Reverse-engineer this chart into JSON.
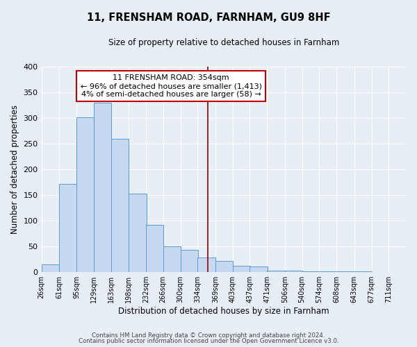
{
  "title": "11, FRENSHAM ROAD, FARNHAM, GU9 8HF",
  "subtitle": "Size of property relative to detached houses in Farnham",
  "xlabel": "Distribution of detached houses by size in Farnham",
  "ylabel": "Number of detached properties",
  "bar_values": [
    15,
    172,
    301,
    329,
    259,
    153,
    92,
    50,
    43,
    29,
    22,
    12,
    11,
    3,
    3,
    2,
    1,
    1,
    1
  ],
  "bin_labels": [
    "26sqm",
    "61sqm",
    "95sqm",
    "129sqm",
    "163sqm",
    "198sqm",
    "232sqm",
    "266sqm",
    "300sqm",
    "334sqm",
    "369sqm",
    "403sqm",
    "437sqm",
    "471sqm",
    "506sqm",
    "540sqm",
    "574sqm",
    "608sqm",
    "643sqm",
    "677sqm",
    "711sqm"
  ],
  "bin_left_edges": [
    26,
    61,
    95,
    129,
    163,
    198,
    232,
    266,
    300,
    334,
    369,
    403,
    437,
    471,
    506,
    540,
    574,
    608,
    643,
    677,
    711
  ],
  "bar_color": "#c6d9f1",
  "bar_edge_color": "#5b9bd5",
  "ylim": [
    0,
    400
  ],
  "yticks": [
    0,
    50,
    100,
    150,
    200,
    250,
    300,
    350,
    400
  ],
  "property_line_x": 354,
  "property_line_color": "#8b0000",
  "annotation_title": "11 FRENSHAM ROAD: 354sqm",
  "annotation_line1": "← 96% of detached houses are smaller (1,413)",
  "annotation_line2": "4% of semi-detached houses are larger (58) →",
  "footer_line1": "Contains HM Land Registry data © Crown copyright and database right 2024.",
  "footer_line2": "Contains public sector information licensed under the Open Government Licence v3.0.",
  "bg_color": "#e8eef5",
  "plot_bg_color": "#e8eef5",
  "grid_color": "#ffffff"
}
